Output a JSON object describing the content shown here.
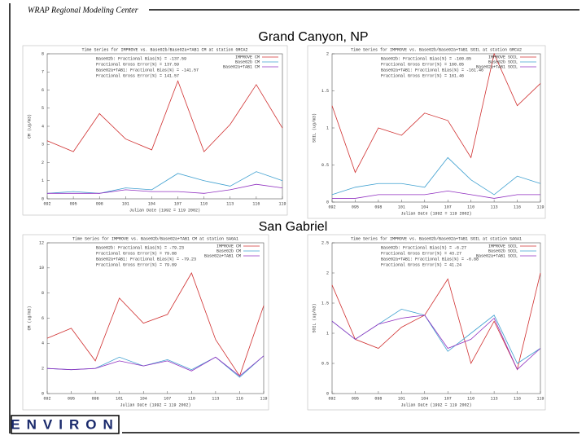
{
  "header": {
    "org": "WRAP Regional Modeling Center",
    "logo": "ENVIRON"
  },
  "sections": [
    "Grand Canyon, NP",
    "San Gabriel"
  ],
  "chart_data": [
    {
      "type": "line",
      "title": "Time Series for IMPROVE vs. Base02b/Base02a+TAB1 CM at station GRCA2",
      "x_label": "Julian Date (1992 = 119 2002)",
      "y_label": "CM (ug/m3)",
      "categories": [
        "092",
        "095",
        "098",
        "101",
        "104",
        "107",
        "110",
        "113",
        "116",
        "119"
      ],
      "ylim": [
        0,
        8
      ],
      "yticks": [
        0,
        1,
        2,
        3,
        4,
        5,
        6,
        7,
        8
      ],
      "annotations": [
        "Base02b: Fractional Bias(%) = -137.59",
        "Fractional Gross Error(%) = 137.59",
        "Base02a+TAB1: Fractional Bias(%) = -141.57",
        "Fractional Gross Error(%) = 141.57"
      ],
      "series": [
        {
          "name": "IMPROVE CM",
          "color": "#d03030",
          "values": [
            3.2,
            2.6,
            4.7,
            3.3,
            2.7,
            6.5,
            2.6,
            4.1,
            6.3,
            3.9
          ]
        },
        {
          "name": "Base02b CM",
          "color": "#3fa0d0",
          "values": [
            0.3,
            0.4,
            0.3,
            0.6,
            0.5,
            1.4,
            1.0,
            0.7,
            1.5,
            1.0
          ]
        },
        {
          "name": "Base02a+TAB1 CM",
          "color": "#9030c0",
          "values": [
            0.3,
            0.3,
            0.3,
            0.5,
            0.4,
            0.4,
            0.3,
            0.5,
            0.8,
            0.6
          ]
        }
      ]
    },
    {
      "type": "line",
      "title": "Time Series for IMPROVE vs. Base02b/Base02a+TAB1 SOIL at station GRCA2",
      "x_label": "Julian Date (1992 = 119 2002)",
      "y_label": "SOIL (ug/m3)",
      "categories": [
        "092",
        "095",
        "098",
        "101",
        "104",
        "107",
        "110",
        "113",
        "116",
        "119"
      ],
      "ylim": [
        0,
        2
      ],
      "yticks": [
        0,
        0.5,
        1,
        1.5,
        2
      ],
      "annotations": [
        "Base02b: Fractional Bias(%) = -160.85",
        "Fractional Gross Error(%) = 160.85",
        "Base02a+TAB1: Fractional Bias(%) = -161.46",
        "Fractional Gross Error(%) = 161.46"
      ],
      "series": [
        {
          "name": "IMPROVE SOIL",
          "color": "#d03030",
          "values": [
            1.3,
            0.4,
            1.0,
            0.9,
            1.2,
            1.1,
            0.6,
            2.0,
            1.3,
            1.6
          ]
        },
        {
          "name": "Base02b SOIL",
          "color": "#3fa0d0",
          "values": [
            0.1,
            0.2,
            0.25,
            0.25,
            0.2,
            0.6,
            0.3,
            0.1,
            0.35,
            0.25
          ]
        },
        {
          "name": "Base02a+TAB1 SOIL",
          "color": "#9030c0",
          "values": [
            0.05,
            0.05,
            0.1,
            0.1,
            0.1,
            0.15,
            0.1,
            0.05,
            0.1,
            0.1
          ]
        }
      ]
    },
    {
      "type": "line",
      "title": "Time Series for IMPROVE vs. Base02b/Base02a+TAB1 CM at station SAGA1",
      "x_label": "Julian Date (1992 = 119 2002)",
      "y_label": "CM (ug/m3)",
      "categories": [
        "092",
        "095",
        "098",
        "101",
        "104",
        "107",
        "110",
        "113",
        "116",
        "119"
      ],
      "ylim": [
        0,
        12
      ],
      "yticks": [
        0,
        2,
        4,
        6,
        8,
        10,
        12
      ],
      "annotations": [
        "Base02b: Fractional Bias(%) = -79.23",
        "Fractional Gross Error(%) = 79.88",
        "Base02a+TAB1: Fractional Bias(%) = -79.23",
        "Fractional Gross Error(%) = 79.89"
      ],
      "series": [
        {
          "name": "IMPROVE CM",
          "color": "#d03030",
          "values": [
            4.4,
            5.2,
            2.6,
            7.6,
            5.6,
            6.3,
            9.6,
            4.3,
            1.4,
            7.0
          ]
        },
        {
          "name": "Base02b CM",
          "color": "#3fa0d0",
          "values": [
            2.0,
            1.9,
            2.0,
            2.9,
            2.2,
            2.7,
            1.9,
            2.9,
            1.3,
            3.0
          ]
        },
        {
          "name": "Base02a+TAB1 CM",
          "color": "#9030c0",
          "values": [
            2.0,
            1.9,
            2.0,
            2.6,
            2.2,
            2.6,
            1.8,
            2.9,
            1.4,
            3.0
          ]
        }
      ]
    },
    {
      "type": "line",
      "title": "Time Series for IMPROVE vs. Base02b/Base02a+TAB1 SOIL at station SAGA1",
      "x_label": "Julian Date (1992 = 119 2002)",
      "y_label": "SOIL (ug/m3)",
      "categories": [
        "092",
        "095",
        "098",
        "101",
        "104",
        "107",
        "110",
        "113",
        "116",
        "119"
      ],
      "ylim": [
        0,
        2.5
      ],
      "yticks": [
        0,
        0.5,
        1,
        1.5,
        2,
        2.5
      ],
      "annotations": [
        "Base02b: Fractional Bias(%) = -6.27",
        "Fractional Gross Error(%) = 43.27",
        "Base02a+TAB1: Fractional Bias(%) = -6.88",
        "Fractional Gross Error(%) = 41.24"
      ],
      "series": [
        {
          "name": "IMPROVE SOIL",
          "color": "#d03030",
          "values": [
            1.8,
            0.9,
            0.75,
            1.1,
            1.3,
            1.9,
            0.5,
            1.2,
            0.4,
            2.0
          ]
        },
        {
          "name": "Base02b SOIL",
          "color": "#3fa0d0",
          "values": [
            1.2,
            0.9,
            1.15,
            1.4,
            1.3,
            0.7,
            1.0,
            1.3,
            0.5,
            0.75
          ]
        },
        {
          "name": "Base02a+TAB1 SOIL",
          "color": "#9030c0",
          "values": [
            1.2,
            0.9,
            1.15,
            1.25,
            1.3,
            0.75,
            0.9,
            1.25,
            0.4,
            0.75
          ]
        }
      ]
    }
  ]
}
